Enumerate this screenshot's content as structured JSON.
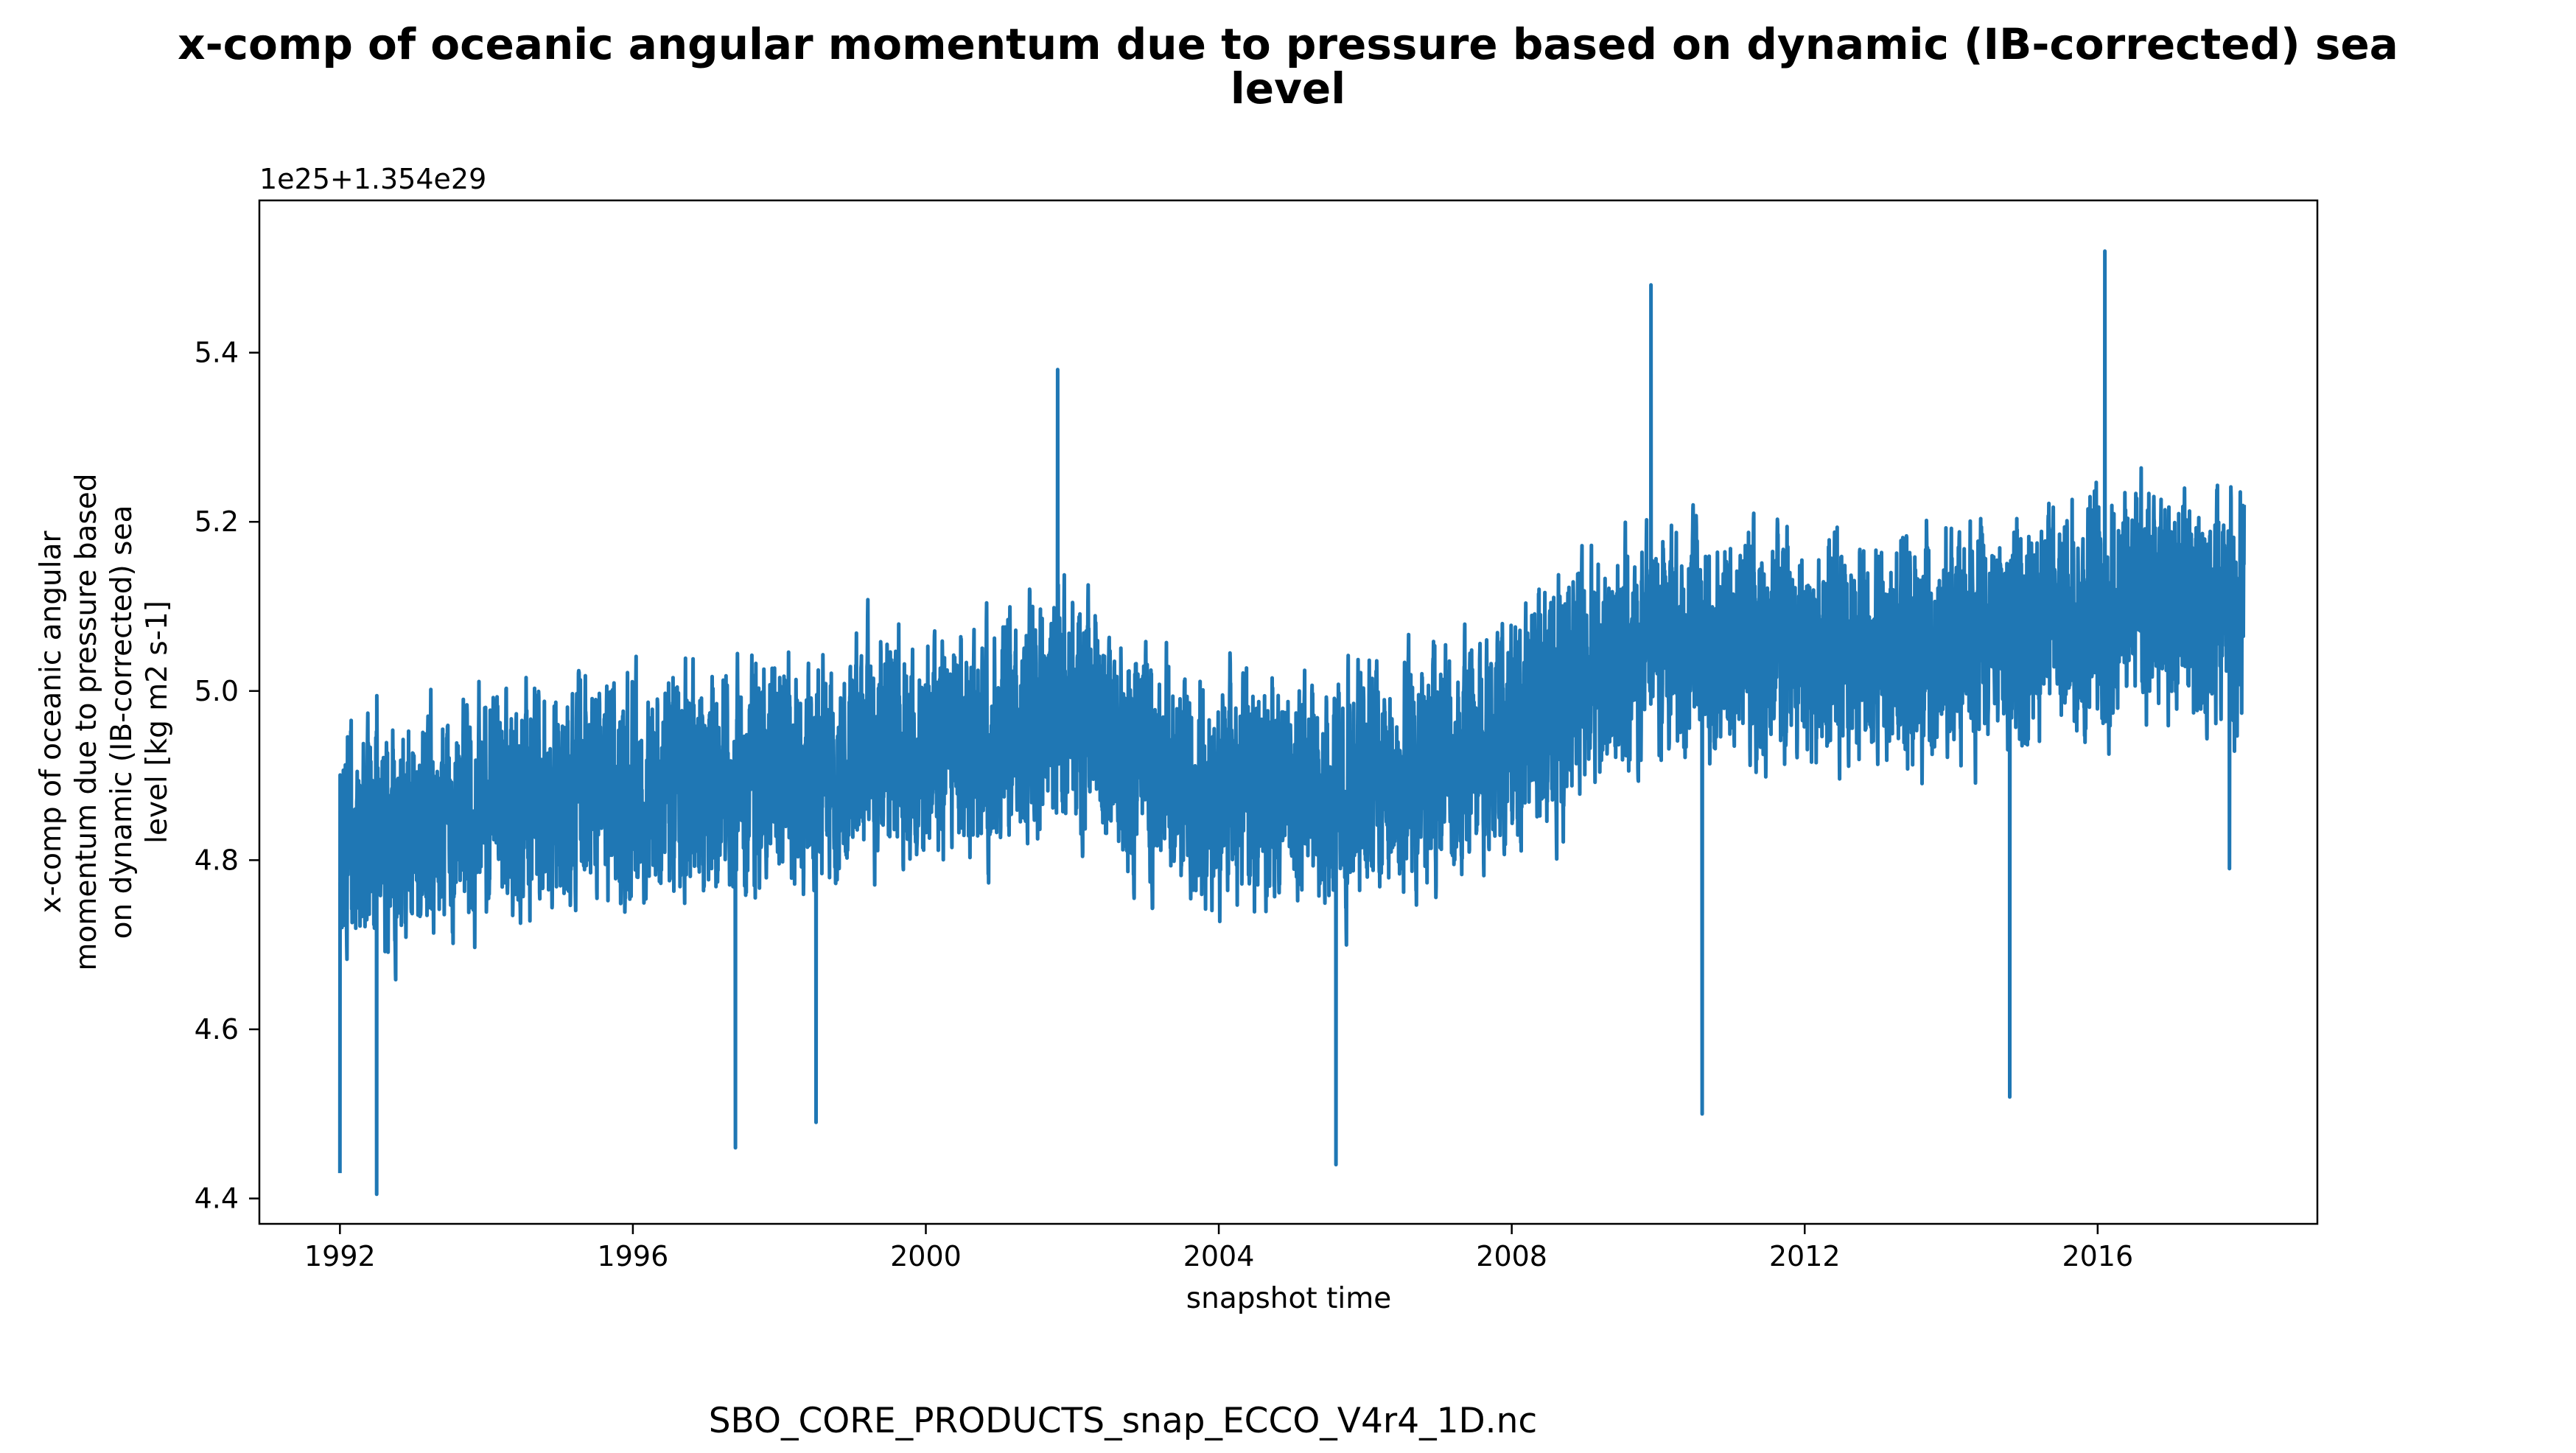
{
  "chart_data": {
    "type": "line",
    "title_lines": [
      "x-comp of oceanic angular momentum due to pressure based on dynamic (IB-corrected) sea",
      "level"
    ],
    "xlabel": "snapshot time",
    "ylabel_lines": [
      "x-comp of oceanic angular",
      "momentum due to pressure based",
      "on dynamic (IB-corrected) sea",
      "level [kg m2 s-1]"
    ],
    "y_offset_text": "1e25+1.354e29",
    "x_range": [
      1990.9,
      2019.0
    ],
    "y_range": [
      4.37,
      5.58
    ],
    "x_ticks": [
      1992,
      1996,
      2000,
      2004,
      2008,
      2012,
      2016
    ],
    "x_tick_labels": [
      "1992",
      "1996",
      "2000",
      "2004",
      "2008",
      "2012",
      "2016"
    ],
    "y_ticks": [
      4.4,
      4.6,
      4.8,
      5.0,
      5.2,
      5.4
    ],
    "y_tick_labels": [
      "4.4",
      "4.6",
      "4.8",
      "5.0",
      "5.2",
      "5.4"
    ],
    "grid": false,
    "legend": "none",
    "series_color": "#1f77b4",
    "series": [
      {
        "x_start": 1992.0,
        "x_end": 2018.0,
        "samples_per_year": 365,
        "trend_knots": [
          [
            1992.0,
            4.82
          ],
          [
            1994.0,
            4.86
          ],
          [
            1996.0,
            4.88
          ],
          [
            1998.0,
            4.9
          ],
          [
            2000.0,
            4.94
          ],
          [
            2002.0,
            4.97
          ],
          [
            2004.0,
            4.87
          ],
          [
            2006.0,
            4.88
          ],
          [
            2008.0,
            4.95
          ],
          [
            2010.0,
            5.06
          ],
          [
            2012.0,
            5.04
          ],
          [
            2014.0,
            5.05
          ],
          [
            2016.0,
            5.1
          ],
          [
            2018.0,
            5.09
          ]
        ],
        "spread": 0.095,
        "annotated_extremes": [
          [
            1992.0,
            4.43
          ],
          [
            1992.5,
            4.4
          ],
          [
            1997.4,
            4.46
          ],
          [
            1998.5,
            4.49
          ],
          [
            2001.8,
            5.38
          ],
          [
            2005.6,
            4.44
          ],
          [
            2009.9,
            5.48
          ],
          [
            2010.6,
            4.5
          ],
          [
            2014.8,
            4.52
          ],
          [
            2016.1,
            5.52
          ],
          [
            2017.8,
            4.79
          ],
          [
            2018.0,
            5.22
          ]
        ]
      }
    ]
  },
  "footer_text": "SBO_CORE_PRODUCTS_snap_ECCO_V4r4_1D.nc"
}
